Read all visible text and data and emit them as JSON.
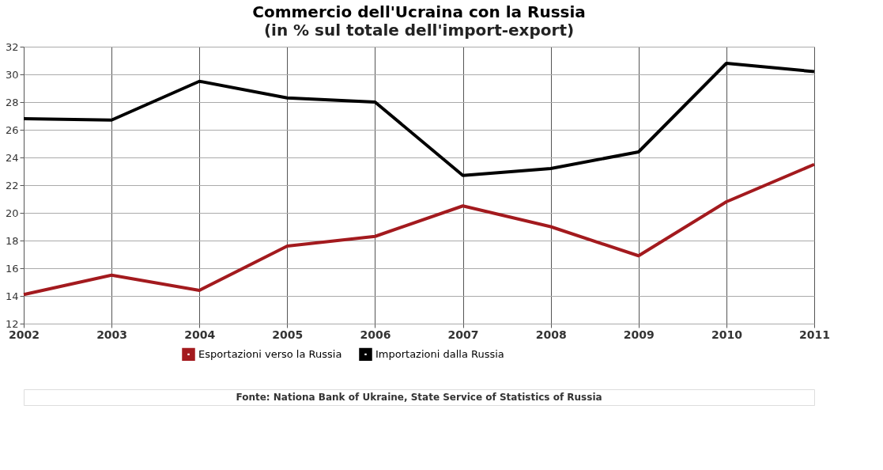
{
  "chart_data": {
    "type": "line",
    "title": "Commercio dell'Ucraina con la Russia",
    "subtitle": "(in % sul totale dell'import-export)",
    "categories": [
      "2002",
      "2003",
      "2004",
      "2005",
      "2006",
      "2007",
      "2008",
      "2009",
      "2010",
      "2011"
    ],
    "series": [
      {
        "name": "Esportazioni verso la Russia",
        "color": "#a31a1e",
        "values": [
          14.1,
          15.5,
          14.4,
          17.6,
          18.3,
          20.5,
          19.0,
          16.9,
          20.8,
          23.5
        ]
      },
      {
        "name": "Importazioni dalla Russia",
        "color": "#000000",
        "values": [
          26.8,
          26.7,
          29.5,
          28.3,
          28.0,
          22.7,
          23.2,
          24.4,
          30.8,
          30.2
        ]
      }
    ],
    "ylim": [
      12,
      32
    ],
    "yticks": [
      12,
      14,
      16,
      18,
      20,
      22,
      24,
      26,
      28,
      30,
      32
    ],
    "grid": true,
    "legend": "bottom",
    "marker": "none",
    "line_style": "solid",
    "annotations": [
      "Fonte: Nationa Bank of Ukraine, State Service of Statistics of Russia"
    ]
  }
}
